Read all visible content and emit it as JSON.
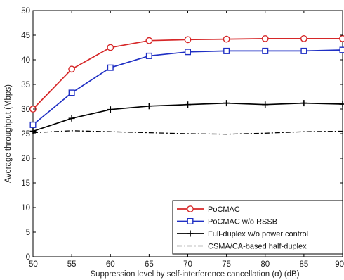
{
  "chart_data": {
    "type": "line",
    "title": "",
    "xlabel": "Suppression level by self-interference cancellation (α) (dB)",
    "ylabel": "Average throughput (Mbps)",
    "xlim": [
      50,
      90
    ],
    "ylim": [
      0,
      50
    ],
    "xticks": [
      50,
      55,
      60,
      65,
      70,
      75,
      80,
      85,
      90
    ],
    "yticks": [
      0,
      5,
      10,
      15,
      20,
      25,
      30,
      35,
      40,
      45,
      50
    ],
    "xtick_labels": [
      "50",
      "55",
      "60",
      "65",
      "70",
      "75",
      "80",
      "85",
      "90"
    ],
    "ytick_labels": [
      "0",
      "5",
      "10",
      "15",
      "20",
      "25",
      "30",
      "35",
      "40",
      "45",
      "50"
    ],
    "grid": false,
    "legend_position": "bottom-right",
    "x": [
      50,
      55,
      60,
      65,
      70,
      75,
      80,
      85,
      90
    ],
    "series": [
      {
        "name": "PoCMAC",
        "values": [
          30.0,
          38.1,
          42.5,
          43.9,
          44.1,
          44.2,
          44.3,
          44.3,
          44.3
        ],
        "color": "#d62728",
        "marker": "circle",
        "line_style": "solid"
      },
      {
        "name": "PoCMAC w/o RSSB",
        "values": [
          26.8,
          33.3,
          38.4,
          40.8,
          41.6,
          41.8,
          41.8,
          41.8,
          42.0
        ],
        "color": "#1f2fc4",
        "marker": "square",
        "line_style": "solid"
      },
      {
        "name": "Full-duplex w/o power control",
        "values": [
          25.5,
          28.1,
          29.9,
          30.6,
          30.9,
          31.2,
          30.9,
          31.2,
          31.0
        ],
        "color": "#000000",
        "marker": "plus",
        "line_style": "solid"
      },
      {
        "name": "CSMA/CA-based half-duplex",
        "values": [
          25.2,
          25.6,
          25.4,
          25.2,
          25.0,
          24.9,
          25.1,
          25.4,
          25.5
        ],
        "color": "#000000",
        "marker": "none",
        "line_style": "dashdot"
      }
    ]
  }
}
